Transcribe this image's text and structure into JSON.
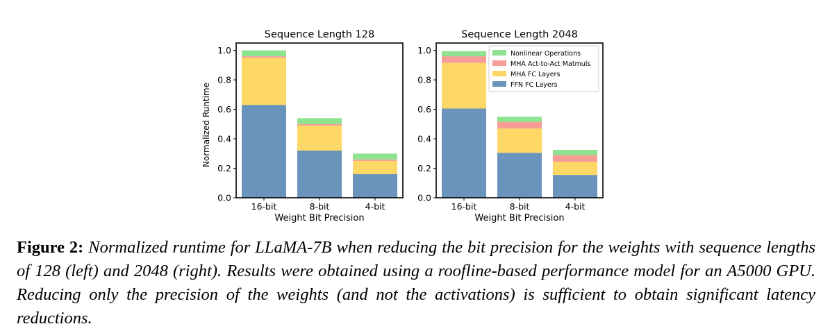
{
  "chart_data": [
    {
      "type": "bar",
      "stacked": true,
      "title": "Sequence Length 128",
      "xlabel": "Weight Bit Precision",
      "ylabel": "Normalized Runtime",
      "ylim": [
        0,
        1.05
      ],
      "yticks": [
        "0.0",
        "0.2",
        "0.4",
        "0.6",
        "0.8",
        "1.0"
      ],
      "categories": [
        "16-bit",
        "8-bit",
        "4-bit"
      ],
      "series": [
        {
          "name": "FFN FC Layers",
          "color": "#6a94bb",
          "values": [
            0.63,
            0.32,
            0.16
          ]
        },
        {
          "name": "MHA FC Layers",
          "color": "#fdd866",
          "values": [
            0.32,
            0.17,
            0.09
          ]
        },
        {
          "name": "MHA Act-to-Act Matmuls",
          "color": "#f69d95",
          "values": [
            0.01,
            0.01,
            0.01
          ]
        },
        {
          "name": "Nonlinear Operations",
          "color": "#8ee38f",
          "values": [
            0.04,
            0.04,
            0.04
          ]
        }
      ],
      "legend": "none"
    },
    {
      "type": "bar",
      "stacked": true,
      "title": "Sequence Length 2048",
      "xlabel": "Weight Bit Precision",
      "ylabel": "",
      "ylim": [
        0,
        1.05
      ],
      "yticks": [
        "0.0",
        "0.2",
        "0.4",
        "0.6",
        "0.8",
        "1.0"
      ],
      "categories": [
        "16-bit",
        "8-bit",
        "4-bit"
      ],
      "series": [
        {
          "name": "FFN FC Layers",
          "color": "#6a94bb",
          "values": [
            0.605,
            0.305,
            0.155
          ]
        },
        {
          "name": "MHA FC Layers",
          "color": "#fdd866",
          "values": [
            0.31,
            0.165,
            0.09
          ]
        },
        {
          "name": "MHA Act-to-Act Matmuls",
          "color": "#f69d95",
          "values": [
            0.045,
            0.045,
            0.045
          ]
        },
        {
          "name": "Nonlinear Operations",
          "color": "#8ee38f",
          "values": [
            0.035,
            0.035,
            0.035
          ]
        }
      ],
      "legend": "top-right",
      "legend_order": [
        "Nonlinear Operations",
        "MHA Act-to-Act Matmuls",
        "MHA FC Layers",
        "FFN FC Layers"
      ]
    }
  ],
  "caption": {
    "label": "Figure 2:",
    "text": "Normalized runtime for LLaMA-7B when reducing the bit precision for the weights with sequence lengths of 128 (left) and 2048 (right). Results were obtained using a roofline-based performance model for an A5000 GPU. Reducing only the precision of the weights (and not the activations) is sufficient to obtain significant latency reductions."
  }
}
